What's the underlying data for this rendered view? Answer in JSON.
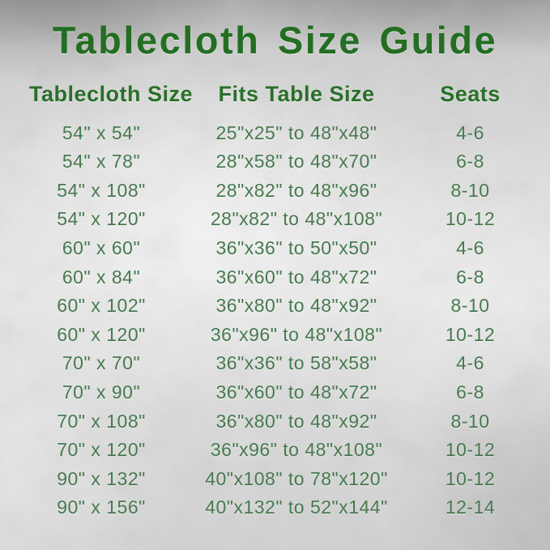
{
  "title": "Tablecloth Size Guide",
  "colors": {
    "title_green": "#236e23",
    "header_green": "#2a6f2a",
    "body_green": "#47794f",
    "background_silver": "#dcdcdc"
  },
  "table": {
    "headers": [
      "Tablecloth Size",
      "Fits Table Size",
      "Seats"
    ],
    "rows": [
      [
        "54\" x 54\"",
        "25\"x25\" to 48\"x48\"",
        "4-6"
      ],
      [
        "54\" x 78\"",
        "28\"x58\" to 48\"x70\"",
        "6-8"
      ],
      [
        "54\" x 108\"",
        "28\"x82\" to 48\"x96\"",
        "8-10"
      ],
      [
        "54\" x 120\"",
        "28\"x82\" to 48\"x108\"",
        "10-12"
      ],
      [
        "60\" x 60\"",
        "36\"x36\" to 50\"x50\"",
        "4-6"
      ],
      [
        "60\" x 84\"",
        "36\"x60\" to 48\"x72\"",
        "6-8"
      ],
      [
        "60\" x 102\"",
        "36\"x80\" to 48\"x92\"",
        "8-10"
      ],
      [
        "60\" x 120\"",
        "36\"x96\" to 48\"x108\"",
        "10-12"
      ],
      [
        "70\" x 70\"",
        "36\"x36\" to 58\"x58\"",
        "4-6"
      ],
      [
        "70\" x 90\"",
        "36\"x60\" to 48\"x72\"",
        "6-8"
      ],
      [
        "70\" x 108\"",
        "36\"x80\" to 48\"x92\"",
        "8-10"
      ],
      [
        "70\" x 120\"",
        "36\"x96\" to 48\"x108\"",
        "10-12"
      ],
      [
        "90\" x 132\"",
        "40\"x108\" to 78\"x120\"",
        "10-12"
      ],
      [
        "90\" x 156\"",
        "40\"x132\" to 52\"x144\"",
        "12-14"
      ]
    ]
  }
}
